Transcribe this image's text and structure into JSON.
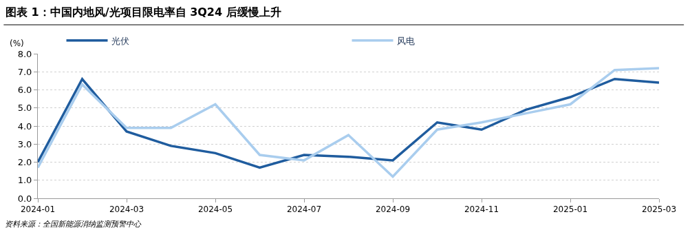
{
  "chart_data": {
    "type": "line",
    "title": "图表 1：中国内地风/光项目限电率自 3Q24 后缓慢上升",
    "ylabel": "(%)",
    "categories": [
      "2024-01",
      null,
      "2024-03",
      null,
      "2024-05",
      null,
      "2024-07",
      null,
      "2024-09",
      null,
      "2024-11",
      null,
      "2025-01",
      null,
      "2025-03"
    ],
    "series": [
      {
        "name": "光伏",
        "color": "#1f5c9e",
        "values": [
          2.0,
          6.6,
          3.7,
          2.9,
          2.5,
          1.7,
          2.4,
          2.3,
          2.1,
          4.2,
          3.8,
          4.9,
          5.6,
          6.6,
          6.4
        ]
      },
      {
        "name": "风电",
        "color": "#a9cdee",
        "values": [
          1.7,
          6.3,
          3.9,
          3.9,
          5.2,
          2.4,
          2.1,
          3.5,
          1.2,
          3.8,
          4.2,
          4.7,
          5.2,
          7.1,
          7.2
        ]
      }
    ],
    "ylim": [
      0,
      8
    ],
    "yticks": [
      {
        "value": 0,
        "label": "0.0"
      },
      {
        "value": 1,
        "label": "1.0"
      },
      {
        "value": 2,
        "label": "2.0"
      },
      {
        "value": 3,
        "label": "3.0"
      },
      {
        "value": 4,
        "label": "4.0"
      },
      {
        "value": 5,
        "label": "5.0"
      },
      {
        "value": 6,
        "label": "6.0"
      },
      {
        "value": 7,
        "label": "7.0"
      },
      {
        "value": 8,
        "label": "8.0"
      }
    ],
    "grid": "y",
    "legend": "top",
    "marker": "none",
    "line_style": "solid",
    "annotations": [
      "资料来源：全国新能源消纳监测预警中心"
    ]
  }
}
